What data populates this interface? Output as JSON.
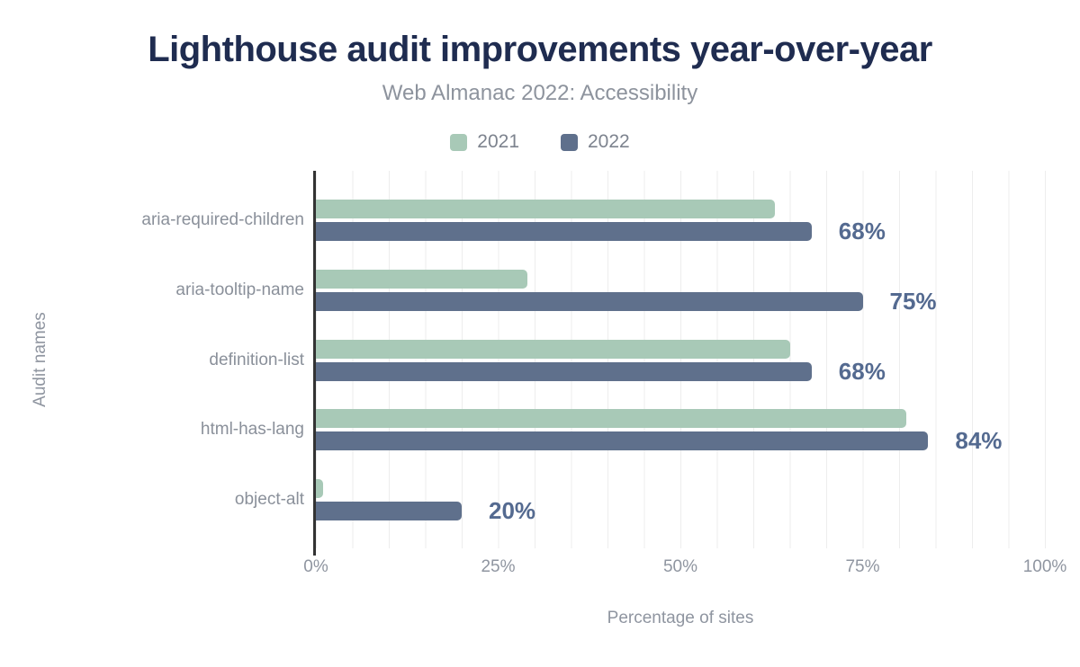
{
  "header": {
    "title": "Lighthouse audit improvements year-over-year",
    "subtitle": "Web Almanac 2022: Accessibility"
  },
  "chart_data": {
    "type": "bar",
    "orientation": "horizontal",
    "title": "Lighthouse audit improvements year-over-year",
    "subtitle": "Web Almanac 2022: Accessibility",
    "categories": [
      "aria-required-children",
      "aria-tooltip-name",
      "definition-list",
      "html-has-lang",
      "object-alt"
    ],
    "series": [
      {
        "name": "2021",
        "color": "#a8c9b7",
        "values": [
          63,
          29,
          65,
          81,
          1
        ]
      },
      {
        "name": "2022",
        "color": "#5f708c",
        "values": [
          68,
          75,
          68,
          84,
          20
        ]
      }
    ],
    "value_labels": {
      "series": "2022",
      "labels": [
        "68%",
        "75%",
        "68%",
        "84%",
        "20%"
      ]
    },
    "xlabel": "Percentage of sites",
    "ylabel": "Audit names",
    "x_ticks": [
      "0%",
      "25%",
      "50%",
      "75%",
      "100%"
    ],
    "xlim": [
      0,
      100
    ],
    "grid": {
      "vertical_step_percent": 5,
      "color": "#ededed"
    },
    "legend_position": "top"
  },
  "colors": {
    "background": "#ffffff",
    "title": "#1f2c50",
    "subtitle": "#8d939d",
    "category_label": "#8a909a",
    "tick_label": "#8f95a0",
    "value_label": "#546a90",
    "axis_line": "#333333",
    "grid_line": "#ededed",
    "series_2021": "#a8c9b7",
    "series_2022": "#5f708c",
    "legend_label": "#7d838e"
  }
}
